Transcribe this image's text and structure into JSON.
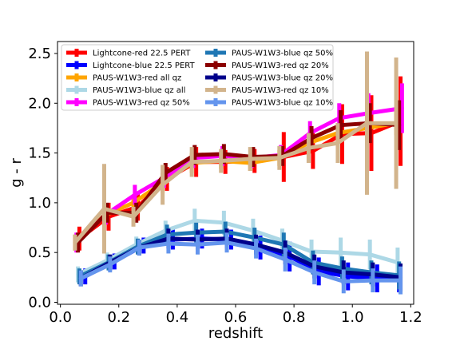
{
  "chart_data": {
    "type": "line",
    "title": "",
    "xlabel": "redshift",
    "ylabel": "g - r",
    "xlim": [
      -0.01,
      1.21
    ],
    "ylim": [
      -0.02,
      2.62
    ],
    "xticks": [
      "0.0",
      "0.2",
      "0.4",
      "0.6",
      "0.8",
      "1.0",
      "1.2"
    ],
    "yticks": [
      "0.0",
      "0.5",
      "1.0",
      "1.5",
      "2.0",
      "2.5"
    ],
    "grid": false,
    "legend": {
      "placement": "top-left",
      "columns": 2
    },
    "x": [
      0.05,
      0.15,
      0.25,
      0.35,
      0.45,
      0.55,
      0.65,
      0.75,
      0.85,
      0.95,
      1.05,
      1.15
    ],
    "series": [
      {
        "name": "Lightcone-red 22.5 PERT",
        "color": "#ff0000",
        "width": 5,
        "x": [
          0.065,
          0.165,
          0.265,
          0.365,
          0.465,
          0.565,
          0.665,
          0.765,
          0.865,
          0.965,
          1.065,
          1.165
        ],
        "values": [
          0.64,
          0.86,
          0.96,
          1.24,
          1.41,
          1.41,
          1.42,
          1.46,
          1.52,
          1.69,
          1.7,
          1.82
        ],
        "err": [
          0.12,
          0.14,
          0.14,
          0.12,
          0.15,
          0.12,
          0.12,
          0.25,
          0.18,
          0.3,
          0.38,
          0.45
        ]
      },
      {
        "name": "Lightcone-blue 22.5 PERT",
        "color": "#0000ff",
        "width": 5,
        "x": [
          0.085,
          0.185,
          0.285,
          0.385,
          0.485,
          0.585,
          0.685,
          0.785,
          0.885,
          0.985,
          1.085,
          1.16
        ],
        "values": [
          0.26,
          0.41,
          0.57,
          0.63,
          0.64,
          0.63,
          0.55,
          0.46,
          0.31,
          0.26,
          0.24,
          0.24
        ],
        "err": [
          0.08,
          0.08,
          0.08,
          0.1,
          0.1,
          0.1,
          0.12,
          0.15,
          0.14,
          0.14,
          0.14,
          0.14
        ]
      },
      {
        "name": "PAUS-W1W3-red all qz",
        "color": "#ffa500",
        "width": 5,
        "x": [
          0.05,
          0.15,
          0.25,
          0.35,
          0.45,
          0.55,
          0.65,
          0.75,
          0.85,
          0.95,
          1.05,
          1.15
        ],
        "values": [
          0.6,
          0.87,
          1.0,
          1.2,
          1.4,
          1.42,
          1.4,
          1.45,
          1.6,
          1.7,
          1.75,
          1.8
        ],
        "err": [
          0.08,
          0.08,
          0.08,
          0.1,
          0.1,
          0.08,
          0.08,
          0.08,
          0.1,
          0.1,
          0.1,
          0.12
        ]
      },
      {
        "name": "PAUS-W1W3-blue qz all",
        "color": "#add8e6",
        "width": 5,
        "x": [
          0.06,
          0.16,
          0.26,
          0.36,
          0.46,
          0.56,
          0.66,
          0.76,
          0.86,
          0.96,
          1.06,
          1.155
        ],
        "values": [
          0.28,
          0.42,
          0.58,
          0.72,
          0.82,
          0.8,
          0.72,
          0.62,
          0.51,
          0.5,
          0.48,
          0.4
        ],
        "err": [
          0.08,
          0.08,
          0.08,
          0.1,
          0.12,
          0.12,
          0.12,
          0.12,
          0.12,
          0.15,
          0.15,
          0.15
        ]
      },
      {
        "name": "PAUS-W1W3-red qz 50%",
        "color": "#ff00ff",
        "width": 5,
        "x": [
          0.055,
          0.155,
          0.255,
          0.355,
          0.455,
          0.555,
          0.655,
          0.755,
          0.855,
          0.955,
          1.055,
          1.17
        ],
        "values": [
          0.6,
          0.88,
          1.08,
          1.25,
          1.45,
          1.47,
          1.45,
          1.48,
          1.7,
          1.85,
          1.9,
          1.95
        ],
        "err": [
          0.1,
          0.1,
          0.1,
          0.1,
          0.1,
          0.1,
          0.1,
          0.1,
          0.12,
          0.15,
          0.2,
          0.25
        ]
      },
      {
        "name": "PAUS-W1W3-blue qz 50%",
        "color": "#1f77b4",
        "width": 5,
        "x": [
          0.065,
          0.165,
          0.265,
          0.365,
          0.465,
          0.565,
          0.665,
          0.765,
          0.865,
          0.965,
          1.065,
          1.16
        ],
        "values": [
          0.26,
          0.4,
          0.56,
          0.68,
          0.7,
          0.71,
          0.65,
          0.58,
          0.4,
          0.34,
          0.3,
          0.27
        ],
        "err": [
          0.08,
          0.08,
          0.08,
          0.1,
          0.1,
          0.1,
          0.1,
          0.12,
          0.12,
          0.12,
          0.12,
          0.14
        ]
      },
      {
        "name": "PAUS-W1W3-red qz 20%",
        "color": "#8b0000",
        "width": 5,
        "x": [
          0.06,
          0.16,
          0.26,
          0.36,
          0.46,
          0.56,
          0.66,
          0.76,
          0.86,
          0.96,
          1.06,
          1.16
        ],
        "values": [
          0.6,
          0.9,
          0.9,
          1.3,
          1.48,
          1.49,
          1.46,
          1.47,
          1.65,
          1.78,
          1.8,
          1.78
        ],
        "err": [
          0.1,
          0.1,
          0.1,
          0.1,
          0.1,
          0.1,
          0.1,
          0.1,
          0.12,
          0.15,
          0.2,
          0.25
        ]
      },
      {
        "name": "PAUS-W1W3-blue qz 20%",
        "color": "#00008b",
        "width": 5,
        "x": [
          0.07,
          0.17,
          0.27,
          0.37,
          0.47,
          0.57,
          0.67,
          0.77,
          0.87,
          0.97,
          1.07,
          1.165
        ],
        "values": [
          0.24,
          0.4,
          0.55,
          0.64,
          0.63,
          0.64,
          0.58,
          0.5,
          0.36,
          0.3,
          0.28,
          0.25
        ],
        "err": [
          0.08,
          0.08,
          0.08,
          0.1,
          0.1,
          0.1,
          0.1,
          0.12,
          0.12,
          0.12,
          0.12,
          0.14
        ]
      },
      {
        "name": "PAUS-W1W3-red qz 10%",
        "color": "#d2b48c",
        "width": 5,
        "x": [
          0.05,
          0.15,
          0.25,
          0.35,
          0.45,
          0.55,
          0.65,
          0.75,
          0.85,
          0.95,
          1.05,
          1.15
        ],
        "values": [
          0.6,
          0.94,
          0.86,
          1.18,
          1.41,
          1.42,
          1.44,
          1.45,
          1.55,
          1.6,
          1.8,
          1.8
        ],
        "err": [
          0.08,
          0.45,
          0.1,
          0.2,
          0.15,
          0.12,
          0.12,
          0.12,
          0.15,
          0.2,
          0.72,
          0.66
        ]
      },
      {
        "name": "PAUS-W1W3-blue qz 10%",
        "color": "#6495ed",
        "width": 5,
        "x": [
          0.07,
          0.17,
          0.27,
          0.37,
          0.47,
          0.57,
          0.67,
          0.77,
          0.87,
          0.97,
          1.07,
          1.165
        ],
        "values": [
          0.24,
          0.38,
          0.55,
          0.59,
          0.58,
          0.6,
          0.54,
          0.43,
          0.3,
          0.21,
          0.22,
          0.22
        ],
        "err": [
          0.08,
          0.08,
          0.08,
          0.1,
          0.1,
          0.1,
          0.1,
          0.12,
          0.12,
          0.12,
          0.12,
          0.14
        ]
      }
    ]
  }
}
